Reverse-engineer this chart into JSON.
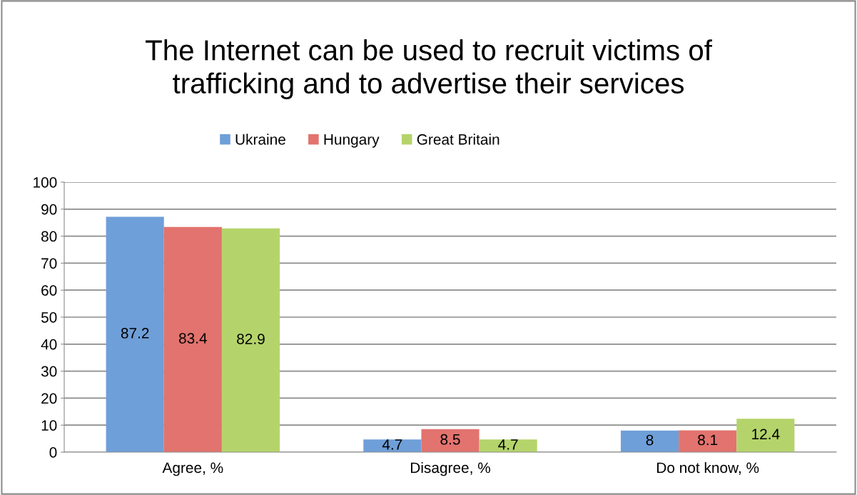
{
  "chart_data": {
    "type": "bar",
    "title": "The Internet can be used to recruit victims of\ntrafficking and to advertise their services",
    "categories": [
      "Agree, %",
      "Disagree, %",
      "Do not know, %"
    ],
    "series": [
      {
        "name": "Ukraine",
        "color": "#6f9fd8",
        "values": [
          87.2,
          4.7,
          8
        ]
      },
      {
        "name": "Hungary",
        "color": "#e2736e",
        "values": [
          83.4,
          8.5,
          8.1
        ]
      },
      {
        "name": "Great Britain",
        "color": "#b4d46b",
        "values": [
          82.9,
          4.7,
          12.4
        ]
      }
    ],
    "ylim": [
      0,
      100
    ],
    "yticks": [
      0,
      10,
      20,
      30,
      40,
      50,
      60,
      70,
      80,
      90,
      100
    ],
    "grid": "y",
    "legend": "top",
    "data_labels": true
  }
}
